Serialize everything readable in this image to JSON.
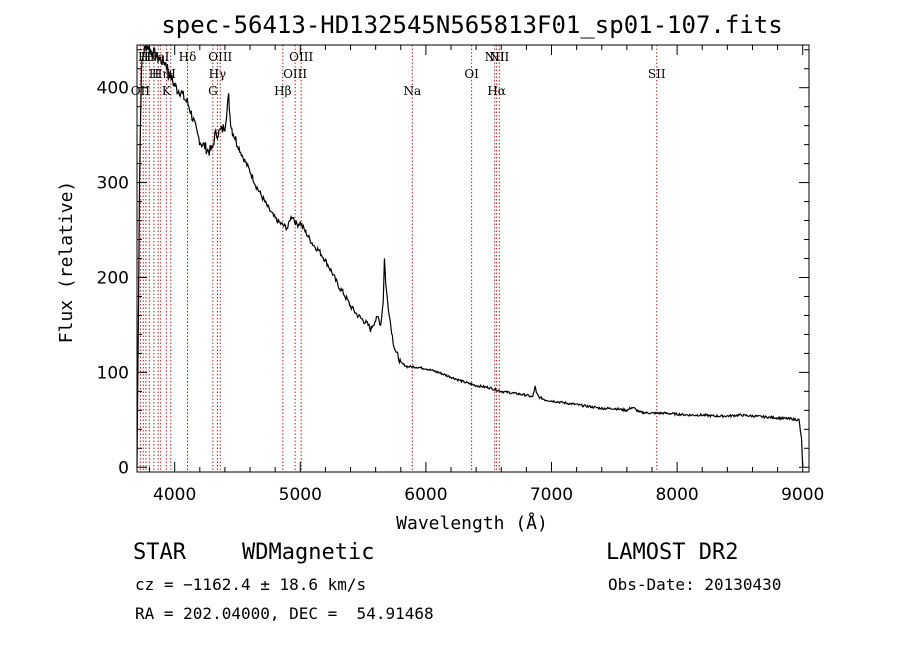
{
  "chart_data": {
    "type": "line",
    "title": "spec-56413-HD132545N565813F01_sp01-107.fits",
    "xlabel": "Wavelength (Å)",
    "ylabel": "Flux (relative)",
    "xlim": [
      3700,
      9050
    ],
    "ylim": [
      -5,
      445
    ],
    "grid": false,
    "x_ticks": [
      "4000",
      "5000",
      "6000",
      "7000",
      "8000",
      "9000"
    ],
    "y_ticks": [
      "0",
      "100",
      "200",
      "300",
      "400"
    ],
    "x_tick_values": [
      4000,
      5000,
      6000,
      7000,
      8000,
      9000
    ],
    "y_tick_values": [
      0,
      100,
      200,
      300,
      400
    ],
    "series": [
      {
        "color": "#000000",
        "x": [
          3700,
          3705,
          3712,
          3720,
          3735,
          3750,
          3760,
          3780,
          3800,
          3820,
          3840,
          3860,
          3880,
          3900,
          3930,
          3960,
          3990,
          4020,
          4050,
          4080,
          4100,
          4120,
          4150,
          4180,
          4210,
          4240,
          4270,
          4300,
          4320,
          4340,
          4360,
          4380,
          4400,
          4420,
          4430,
          4440,
          4450,
          4460,
          4480,
          4500,
          4550,
          4600,
          4650,
          4700,
          4750,
          4800,
          4850,
          4900,
          4920,
          4940,
          4960,
          4980,
          5000,
          5050,
          5100,
          5150,
          5200,
          5250,
          5300,
          5350,
          5400,
          5450,
          5500,
          5540,
          5560,
          5570,
          5580,
          5600,
          5620,
          5640,
          5660,
          5670,
          5680,
          5690,
          5700,
          5720,
          5740,
          5760,
          5800,
          5850,
          5900,
          5950,
          6000,
          6100,
          6200,
          6300,
          6400,
          6500,
          6600,
          6700,
          6800,
          6850,
          6870,
          6880,
          6900,
          6950,
          7000,
          7100,
          7200,
          7300,
          7400,
          7500,
          7600,
          7640,
          7660,
          7700,
          7800,
          7900,
          8000,
          8100,
          8200,
          8300,
          8400,
          8500,
          8600,
          8700,
          8800,
          8900,
          8970,
          8990,
          9000
        ],
        "y": [
          0,
          70,
          170,
          300,
          420,
          435,
          440,
          445,
          440,
          438,
          436,
          432,
          430,
          428,
          426,
          415,
          405,
          398,
          396,
          388,
          385,
          378,
          365,
          350,
          342,
          338,
          333,
          335,
          350,
          352,
          354,
          356,
          360,
          382,
          390,
          372,
          360,
          355,
          348,
          340,
          325,
          312,
          296,
          284,
          272,
          262,
          256,
          252,
          262,
          265,
          258,
          256,
          258,
          246,
          235,
          228,
          218,
          206,
          192,
          182,
          170,
          161,
          155,
          150,
          145,
          148,
          151,
          155,
          158,
          150,
          175,
          220,
          195,
          180,
          170,
          150,
          132,
          122,
          110,
          106,
          106,
          105,
          104,
          100,
          95,
          90,
          86,
          84,
          80,
          78,
          76,
          74,
          85,
          78,
          74,
          71,
          70,
          68,
          66,
          64,
          62,
          62,
          60,
          63,
          62,
          58,
          57,
          57,
          56,
          55,
          55,
          54,
          54,
          55,
          54,
          53,
          52,
          51,
          50,
          30,
          0
        ]
      }
    ],
    "line_marks": [
      {
        "x": 3727,
        "label": "OII",
        "row": 3
      },
      {
        "x": 3750,
        "label": "H",
        "row": 1
      },
      {
        "x": 3771,
        "label": "H",
        "row": 1
      },
      {
        "x": 3798,
        "label": "H",
        "row": 1
      },
      {
        "x": 3835,
        "label": "H",
        "row": 2
      },
      {
        "x": 3869,
        "label": "NeI",
        "row": 1
      },
      {
        "x": 3889,
        "label": "Hη",
        "row": 2
      },
      {
        "x": 3934,
        "label": "K",
        "row": 3
      },
      {
        "x": 3969,
        "label": "H",
        "row": 2
      },
      {
        "x": 4102,
        "label": "Hδ",
        "row": 1
      },
      {
        "x": 4304,
        "label": "G",
        "row": 3
      },
      {
        "x": 4340,
        "label": "Hγ",
        "row": 2
      },
      {
        "x": 4363,
        "label": "OIII",
        "row": 1
      },
      {
        "x": 4861,
        "label": "Hβ",
        "row": 3
      },
      {
        "x": 4959,
        "label": "OIII",
        "row": 2
      },
      {
        "x": 5007,
        "label": "OIII",
        "row": 1
      },
      {
        "x": 5892,
        "label": "Na",
        "row": 3
      },
      {
        "x": 6364,
        "label": "OI",
        "row": 2
      },
      {
        "x": 6548,
        "label": "NII",
        "row": 1
      },
      {
        "x": 6563,
        "label": "Hα",
        "row": 3
      },
      {
        "x": 6584,
        "label": "NII",
        "row": 1
      },
      {
        "x": 7838,
        "label": "SII",
        "row": 2
      }
    ],
    "line_color": "#b22222"
  },
  "info": {
    "star_label": "STAR",
    "class_label": "WDMagnetic",
    "survey": "LAMOST DR2",
    "cz": "cz = −1162.4 ± 18.6 km/s",
    "obs_date": "Obs-Date: 20130430",
    "radec": "RA = 202.04000, DEC =  54.91468"
  }
}
